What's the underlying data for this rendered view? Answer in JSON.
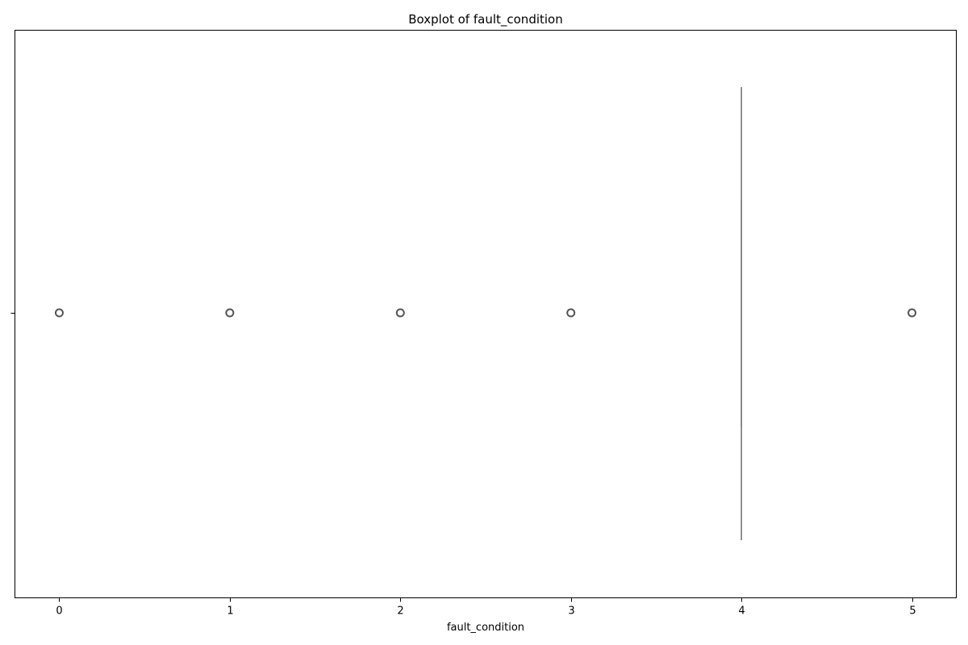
{
  "chart_data": {
    "type": "boxplot",
    "orientation": "horizontal",
    "title": "Boxplot of fault_condition",
    "xlabel": "fault_condition",
    "ylabel": "",
    "xlim": [
      -0.26,
      5.26
    ],
    "xticks": [
      0,
      1,
      2,
      3,
      4,
      5
    ],
    "xtick_labels": [
      "0",
      "1",
      "2",
      "3",
      "4",
      "5"
    ],
    "grid": false,
    "box": {
      "q1": 4,
      "median": 4,
      "q3": 4,
      "whisker_low": 4,
      "whisker_high": 4
    },
    "outliers": [
      0,
      1,
      2,
      3,
      5
    ],
    "colors": {
      "box": "#808080",
      "outlier_edge": "#555555",
      "axes": "#000000"
    }
  }
}
